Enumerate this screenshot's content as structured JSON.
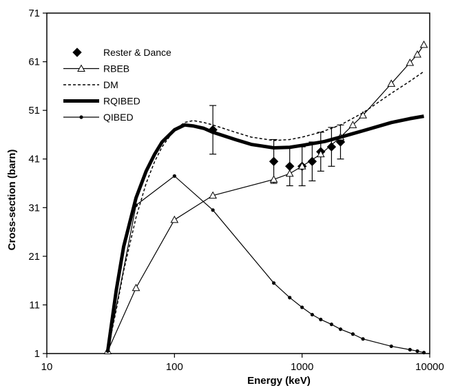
{
  "chart_data": {
    "type": "line",
    "xlabel": "Energy  (keV)",
    "ylabel": "Cross-section (barn)",
    "x_scale": "log",
    "xlim": [
      10,
      10000
    ],
    "ylim": [
      1,
      71
    ],
    "x_ticks": [
      "10",
      "100",
      "1000",
      "10000"
    ],
    "y_ticks": [
      "1",
      "11",
      "21",
      "31",
      "41",
      "51",
      "61",
      "71"
    ],
    "legend_position": "top-left",
    "series": [
      {
        "name": "Rester & Dance",
        "style": "markers",
        "marker": "filled-diamond",
        "color": "#000000",
        "x": [
          200,
          600,
          800,
          1000,
          1200,
          1400,
          1700,
          2000
        ],
        "y": [
          47,
          40.5,
          39.5,
          39.5,
          40.5,
          42.5,
          43.5,
          44.5
        ],
        "yerr": [
          5,
          4.5,
          4,
          4,
          4,
          4,
          4,
          3.5
        ]
      },
      {
        "name": "RBEB",
        "style": "line-markers",
        "marker": "open-triangle",
        "color": "#000000",
        "x": [
          30,
          50,
          100,
          200,
          600,
          800,
          1000,
          1400,
          2000,
          2500,
          3000,
          5000,
          7000,
          8000,
          9000
        ],
        "y": [
          1.5,
          14.5,
          28.5,
          33.5,
          36.8,
          38,
          39.5,
          42,
          45.5,
          48,
          50,
          56.5,
          60.8,
          62.5,
          64.5
        ]
      },
      {
        "name": "DM",
        "style": "dashed",
        "color": "#000000",
        "x": [
          30,
          35,
          40,
          50,
          60,
          70,
          80,
          100,
          120,
          140,
          170,
          200,
          300,
          400,
          600,
          800,
          1000,
          1400,
          2000,
          3000,
          5000,
          7000,
          9000
        ],
        "y": [
          1.5,
          10,
          18,
          29,
          36,
          40.5,
          43.5,
          47,
          48.5,
          48.9,
          48.5,
          48,
          46.5,
          45.5,
          44.8,
          45,
          45.5,
          46.5,
          48,
          50.5,
          54.5,
          57,
          59
        ]
      },
      {
        "name": "RQIBED",
        "style": "thick-line",
        "color": "#000000",
        "x": [
          30,
          35,
          40,
          50,
          60,
          70,
          80,
          100,
          120,
          140,
          170,
          200,
          300,
          400,
          600,
          800,
          1000,
          1500,
          2000,
          3000,
          5000,
          7000,
          9000
        ],
        "y": [
          1.5,
          14,
          23,
          33,
          38.5,
          42,
          44.5,
          47,
          48,
          47.8,
          47.3,
          46.5,
          45,
          44,
          43.3,
          43.4,
          43.8,
          44.6,
          45.5,
          46.8,
          48.5,
          49.3,
          49.8
        ]
      },
      {
        "name": "QIBED",
        "style": "line-markers",
        "marker": "filled-circle",
        "color": "#000000",
        "x": [
          30,
          50,
          100,
          200,
          600,
          800,
          1000,
          1200,
          1400,
          1700,
          2000,
          2500,
          3000,
          5000,
          7000,
          8000,
          9000
        ],
        "y": [
          1.5,
          31.5,
          37.5,
          30.5,
          15.5,
          12.5,
          10.5,
          9,
          8,
          7,
          6,
          5,
          4,
          2.5,
          1.8,
          1.5,
          1.2
        ]
      }
    ]
  }
}
